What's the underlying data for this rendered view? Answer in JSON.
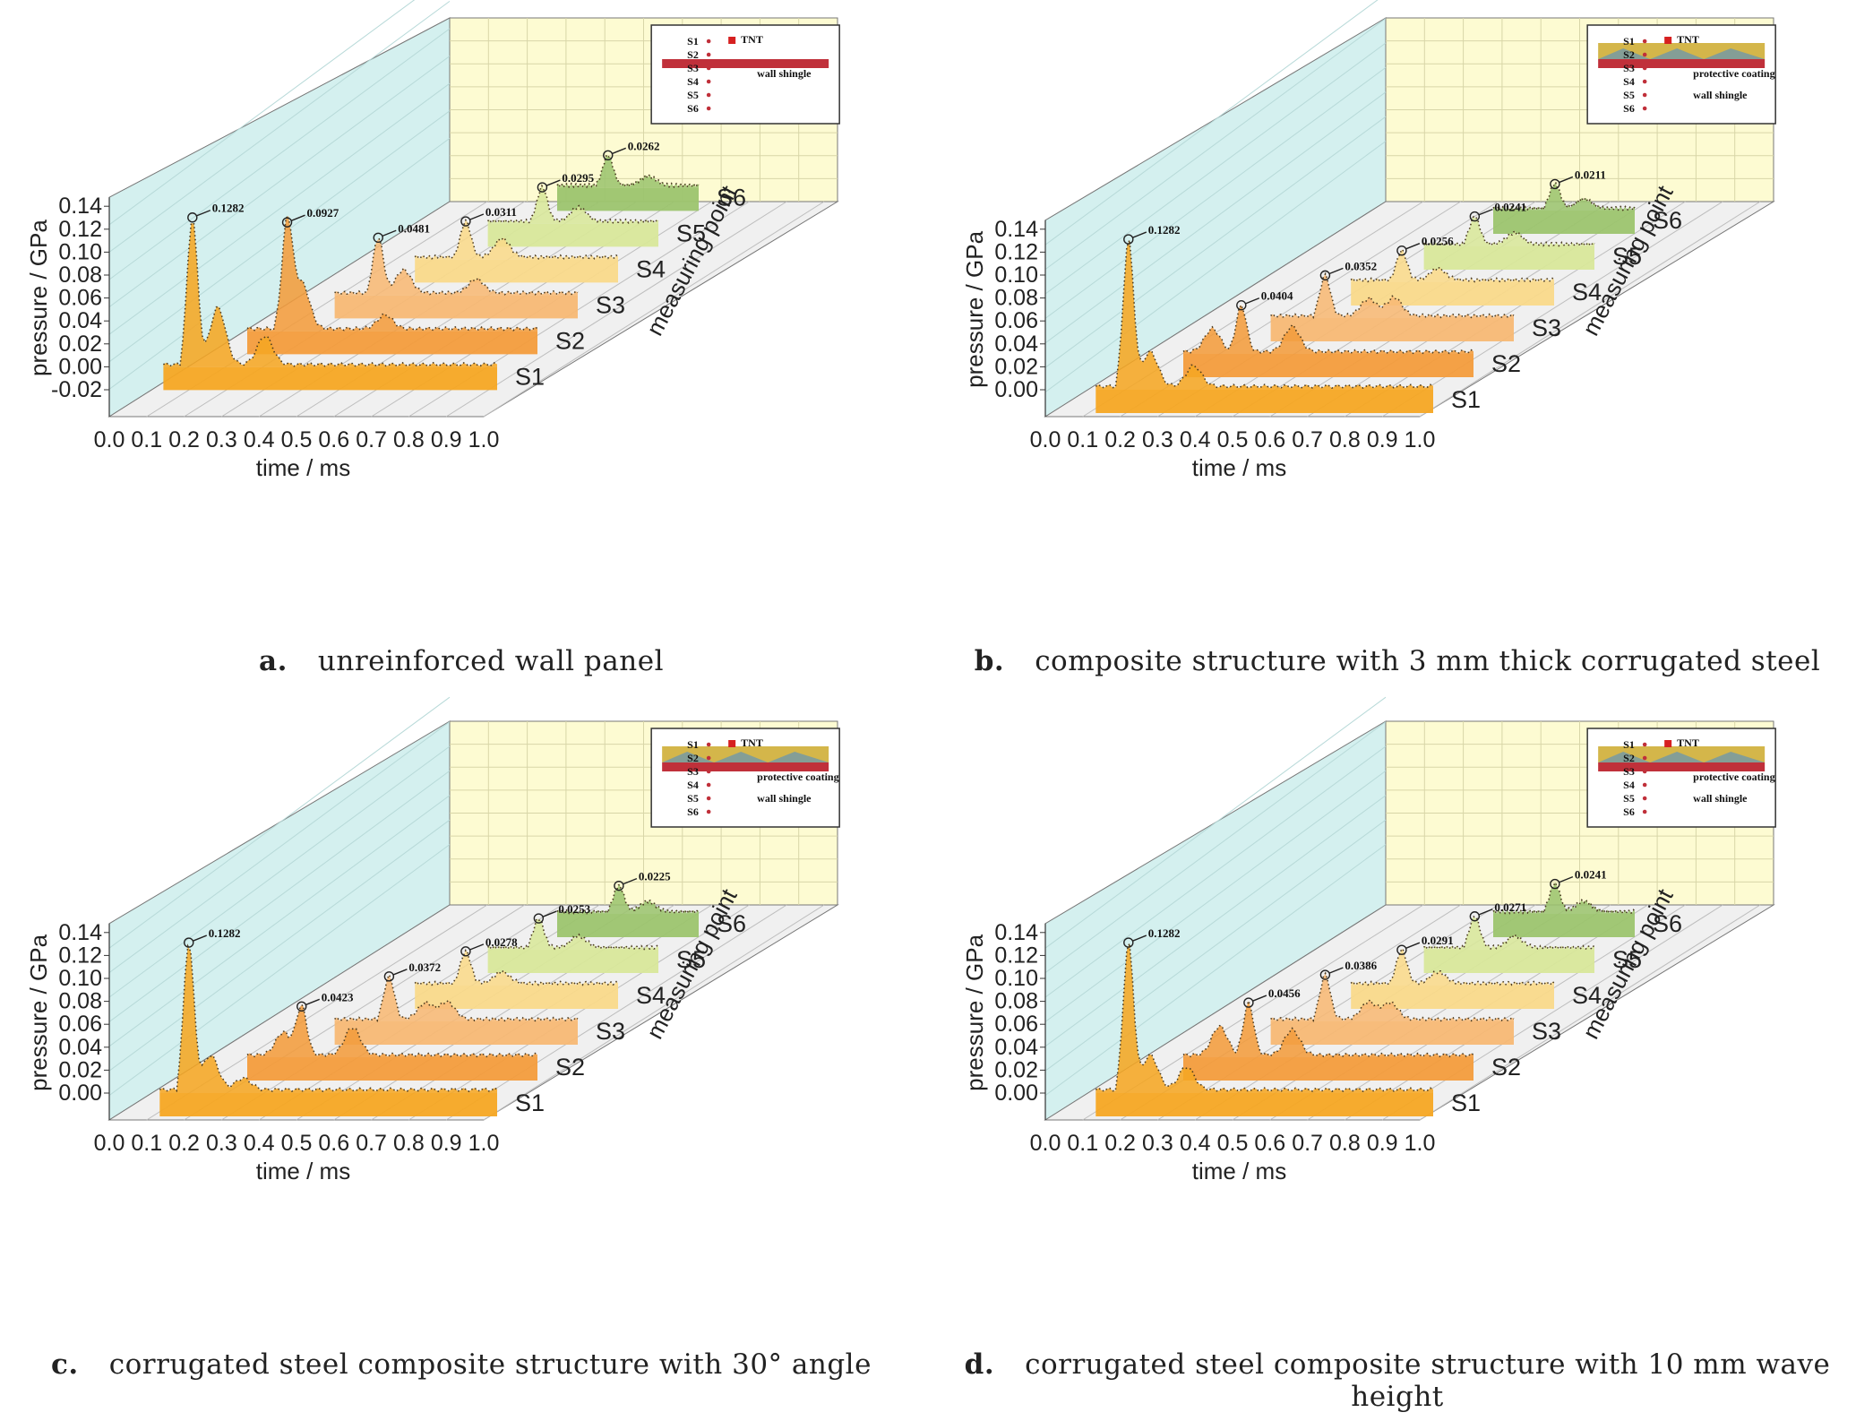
{
  "axes": {
    "ylabel": "pressure / GPa",
    "xlabel": "time / ms",
    "zlabel": "measuring point",
    "points": [
      "S1",
      "S2",
      "S3",
      "S4",
      "S5",
      "S6"
    ]
  },
  "colors": {
    "S1": "#f5a623",
    "S2": "#f39c3c",
    "S3": "#f7b874",
    "S4": "#f9d98a",
    "S5": "#d8e79a",
    "S6": "#9cc46e",
    "back_wall": "#fdfbd2",
    "left_wall": "#d4f0ef",
    "floor": "#f0f0f0",
    "inset_band": "#c0303a",
    "inset_coat": "#d4b64a"
  },
  "chart_data": [
    {
      "type": "area",
      "caption_letter": "a.",
      "caption": "unreinforced wall panel",
      "xlim": [
        0,
        1.0
      ],
      "ylim": [
        -0.02,
        0.14
      ],
      "xticks": [
        "0.0",
        "0.1",
        "0.2",
        "0.3",
        "0.4",
        "0.5",
        "0.6",
        "0.7",
        "0.8",
        "0.9",
        "1.0"
      ],
      "yticks": [
        "-0.02",
        "0.00",
        "0.02",
        "0.04",
        "0.06",
        "0.08",
        "0.10",
        "0.12",
        "0.14"
      ],
      "inset": {
        "labels": [
          "S1",
          "S2",
          "S3",
          "S4",
          "S5",
          "S6"
        ],
        "tnt": "TNT",
        "notes": [
          "wall shingle"
        ],
        "coating": false
      },
      "series": [
        {
          "name": "S1",
          "t0": 0.08,
          "peak": 0.1282,
          "peak_t": 0.16,
          "peak_label": "0.1282",
          "secondary": [
            [
              0.23,
              0.05
            ],
            [
              0.36,
              0.025
            ]
          ],
          "tail": 0.002
        },
        {
          "name": "S2",
          "t0": 0.2,
          "peak": 0.0927,
          "peak_t": 0.31,
          "peak_label": "0.0927",
          "secondary": [
            [
              0.35,
              0.04
            ],
            [
              0.58,
              0.012
            ]
          ],
          "tail": 0.002
        },
        {
          "name": "S3",
          "t0": 0.33,
          "peak": 0.0481,
          "peak_t": 0.45,
          "peak_label": "0.0481",
          "secondary": [
            [
              0.52,
              0.02
            ],
            [
              0.72,
              0.012
            ]
          ],
          "tail": 0.002
        },
        {
          "name": "S4",
          "t0": 0.44,
          "peak": 0.0311,
          "peak_t": 0.58,
          "peak_label": "0.0311",
          "secondary": [
            [
              0.68,
              0.016
            ]
          ],
          "tail": 0.002
        },
        {
          "name": "S5",
          "t0": 0.53,
          "peak": 0.0295,
          "peak_t": 0.68,
          "peak_label": "0.0295",
          "secondary": [
            [
              0.78,
              0.012
            ]
          ],
          "tail": 0.002
        },
        {
          "name": "S6",
          "t0": 0.61,
          "peak": 0.0262,
          "peak_t": 0.75,
          "peak_label": "0.0262",
          "secondary": [
            [
              0.86,
              0.008
            ]
          ],
          "tail": 0.002
        }
      ]
    },
    {
      "type": "area",
      "caption_letter": "b.",
      "caption": "composite structure with 3 mm thick corrugated steel",
      "xlim": [
        0,
        1.0
      ],
      "ylim": [
        0.0,
        0.14
      ],
      "xticks": [
        "0.0",
        "0.1",
        "0.2",
        "0.3",
        "0.4",
        "0.5",
        "0.6",
        "0.7",
        "0.8",
        "0.9",
        "1.0"
      ],
      "yticks": [
        "0.00",
        "0.02",
        "0.04",
        "0.06",
        "0.08",
        "0.10",
        "0.12",
        "0.14"
      ],
      "inset": {
        "labels": [
          "S1",
          "S2",
          "S3",
          "S4",
          "S5",
          "S6"
        ],
        "tnt": "TNT",
        "notes": [
          "protective coating",
          "wall shingle"
        ],
        "coating": true
      },
      "series": [
        {
          "name": "S1",
          "t0": 0.07,
          "peak": 0.1282,
          "peak_t": 0.16,
          "peak_label": "0.1282",
          "secondary": [
            [
              0.22,
              0.03
            ],
            [
              0.34,
              0.018
            ]
          ],
          "tail": 0.003
        },
        {
          "name": "S2",
          "t0": 0.2,
          "peak": 0.0404,
          "peak_t": 0.36,
          "peak_label": "0.0404",
          "secondary": [
            [
              0.28,
              0.02
            ],
            [
              0.5,
              0.022
            ]
          ],
          "tail": 0.002
        },
        {
          "name": "S3",
          "t0": 0.33,
          "peak": 0.0352,
          "peak_t": 0.48,
          "peak_label": "0.0352",
          "secondary": [
            [
              0.6,
              0.015
            ],
            [
              0.67,
              0.016
            ]
          ],
          "tail": 0.002
        },
        {
          "name": "S4",
          "t0": 0.44,
          "peak": 0.0256,
          "peak_t": 0.58,
          "peak_label": "0.0256",
          "secondary": [
            [
              0.68,
              0.01
            ]
          ],
          "tail": 0.002
        },
        {
          "name": "S5",
          "t0": 0.53,
          "peak": 0.0241,
          "peak_t": 0.67,
          "peak_label": "0.0241",
          "secondary": [
            [
              0.78,
              0.01
            ]
          ],
          "tail": 0.002
        },
        {
          "name": "S6",
          "t0": 0.61,
          "peak": 0.0211,
          "peak_t": 0.78,
          "peak_label": "0.0211",
          "secondary": [
            [
              0.86,
              0.008
            ]
          ],
          "tail": 0.002
        }
      ]
    },
    {
      "type": "area",
      "caption_letter": "c.",
      "caption": "corrugated steel composite structure with 30° angle",
      "xlim": [
        0,
        1.0
      ],
      "ylim": [
        0.0,
        0.14
      ],
      "xticks": [
        "0.0",
        "0.1",
        "0.2",
        "0.3",
        "0.4",
        "0.5",
        "0.6",
        "0.7",
        "0.8",
        "0.9",
        "1.0"
      ],
      "yticks": [
        "0.00",
        "0.02",
        "0.04",
        "0.06",
        "0.08",
        "0.10",
        "0.12",
        "0.14"
      ],
      "inset": {
        "labels": [
          "S1",
          "S2",
          "S3",
          "S4",
          "S5",
          "S6"
        ],
        "tnt": "TNT",
        "notes": [
          "protective coating",
          "wall shingle"
        ],
        "coating": true
      },
      "series": [
        {
          "name": "S1",
          "t0": 0.07,
          "peak": 0.1282,
          "peak_t": 0.15,
          "peak_label": "0.1282",
          "secondary": [
            [
              0.21,
              0.03
            ],
            [
              0.3,
              0.01
            ]
          ],
          "tail": 0.003
        },
        {
          "name": "S2",
          "t0": 0.2,
          "peak": 0.0423,
          "peak_t": 0.35,
          "peak_label": "0.0423",
          "secondary": [
            [
              0.3,
              0.02
            ],
            [
              0.49,
              0.024
            ]
          ],
          "tail": 0.002
        },
        {
          "name": "S3",
          "t0": 0.33,
          "peak": 0.0372,
          "peak_t": 0.48,
          "peak_label": "0.0372",
          "secondary": [
            [
              0.58,
              0.014
            ],
            [
              0.64,
              0.015
            ]
          ],
          "tail": 0.002
        },
        {
          "name": "S4",
          "t0": 0.44,
          "peak": 0.0278,
          "peak_t": 0.58,
          "peak_label": "0.0278",
          "secondary": [
            [
              0.68,
              0.01
            ]
          ],
          "tail": 0.002
        },
        {
          "name": "S5",
          "t0": 0.53,
          "peak": 0.0253,
          "peak_t": 0.67,
          "peak_label": "0.0253",
          "secondary": [
            [
              0.78,
              0.01
            ]
          ],
          "tail": 0.002
        },
        {
          "name": "S6",
          "t0": 0.61,
          "peak": 0.0225,
          "peak_t": 0.78,
          "peak_label": "0.0225",
          "secondary": [
            [
              0.86,
              0.009
            ]
          ],
          "tail": 0.002
        }
      ]
    },
    {
      "type": "area",
      "caption_letter": "d.",
      "caption": "corrugated steel composite structure with 10 mm wave height",
      "xlim": [
        0,
        1.0
      ],
      "ylim": [
        0.0,
        0.14
      ],
      "xticks": [
        "0.0",
        "0.1",
        "0.2",
        "0.3",
        "0.4",
        "0.5",
        "0.6",
        "0.7",
        "0.8",
        "0.9",
        "1.0"
      ],
      "yticks": [
        "0.00",
        "0.02",
        "0.04",
        "0.06",
        "0.08",
        "0.10",
        "0.12",
        "0.14"
      ],
      "inset": {
        "labels": [
          "S1",
          "S2",
          "S3",
          "S4",
          "S5",
          "S6"
        ],
        "tnt": "TNT",
        "notes": [
          "protective coating",
          "wall shingle"
        ],
        "coating": true
      },
      "series": [
        {
          "name": "S1",
          "t0": 0.07,
          "peak": 0.1282,
          "peak_t": 0.16,
          "peak_label": "0.1282",
          "secondary": [
            [
              0.22,
              0.03
            ],
            [
              0.32,
              0.02
            ]
          ],
          "tail": 0.003
        },
        {
          "name": "S2",
          "t0": 0.2,
          "peak": 0.0456,
          "peak_t": 0.38,
          "peak_label": "0.0456",
          "secondary": [
            [
              0.3,
              0.025
            ],
            [
              0.5,
              0.022
            ]
          ],
          "tail": 0.002
        },
        {
          "name": "S3",
          "t0": 0.33,
          "peak": 0.0386,
          "peak_t": 0.48,
          "peak_label": "0.0386",
          "secondary": [
            [
              0.6,
              0.015
            ],
            [
              0.66,
              0.014
            ]
          ],
          "tail": 0.002
        },
        {
          "name": "S4",
          "t0": 0.44,
          "peak": 0.0291,
          "peak_t": 0.58,
          "peak_label": "0.0291",
          "secondary": [
            [
              0.68,
              0.01
            ]
          ],
          "tail": 0.002
        },
        {
          "name": "S5",
          "t0": 0.53,
          "peak": 0.0271,
          "peak_t": 0.67,
          "peak_label": "0.0271",
          "secondary": [
            [
              0.78,
              0.01
            ]
          ],
          "tail": 0.002
        },
        {
          "name": "S6",
          "t0": 0.61,
          "peak": 0.0241,
          "peak_t": 0.78,
          "peak_label": "0.0241",
          "secondary": [
            [
              0.86,
              0.009
            ]
          ],
          "tail": 0.002
        }
      ]
    }
  ]
}
